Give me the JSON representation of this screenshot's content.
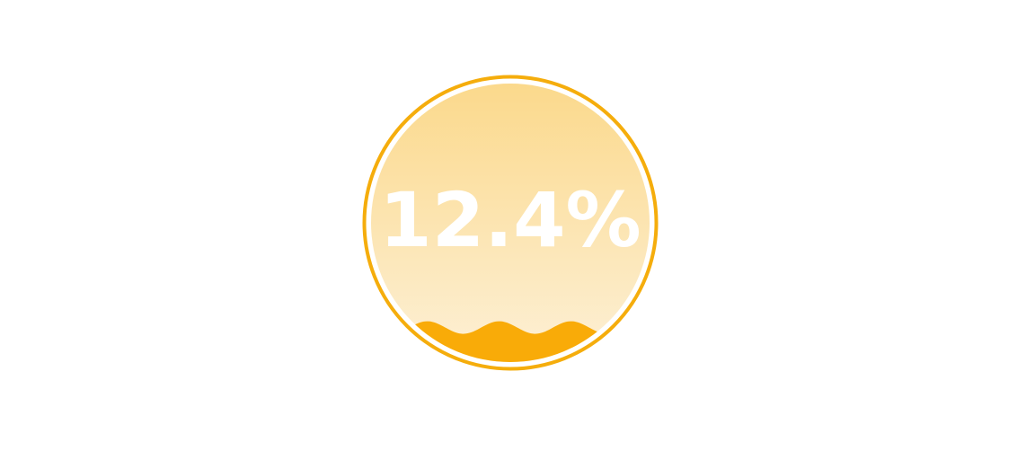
{
  "chart_data": {
    "type": "liquid-fill-gauge",
    "value": 0.124,
    "label": "12.4%",
    "colors": {
      "border": "#f5ad0c",
      "inner_ring": "#ffffff",
      "background_top": "#fbd98c",
      "background_bottom": "#fdf0d6",
      "wave": "#f9ab08",
      "label": "#ffffff"
    }
  }
}
